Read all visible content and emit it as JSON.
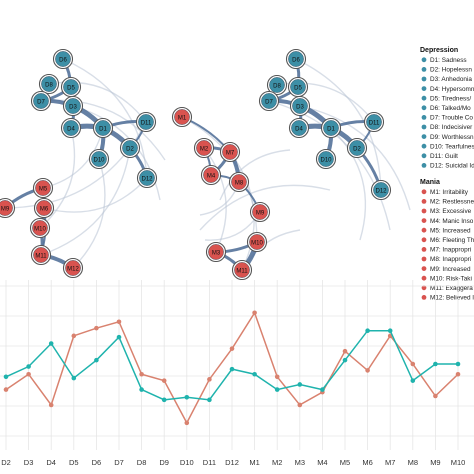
{
  "colors": {
    "depression": "#3d8fa6",
    "mania": "#d9534f",
    "edge": "#4a6a94",
    "edge_faint": "#b8c3d3",
    "line_red": "#d9826f",
    "line_teal": "#1fb3ad",
    "grid": "#e6e6e6"
  },
  "legend": {
    "depression_title": "Depression",
    "depression_items": [
      "D1: Sadness",
      "D2: Hopelessn",
      "D3: Anhedonia",
      "D4: Hypersomn",
      "D5: Tiredness/",
      "D6: Talked/Mo",
      "D7: Trouble Co",
      "D8: Indecisiver",
      "D9: Worthlessn",
      "D10: Tearfulnes",
      "D11: Guilt",
      "D12: Suicidal Id"
    ],
    "mania_title": "Mania",
    "mania_items": [
      "M1: Irritability",
      "M2: Restlessne",
      "M3: Excessive",
      "M4: Manic Inso",
      "M5: Increased",
      "M6: Fleeting Th",
      "M7: Inappropri",
      "M8: Inappropri",
      "M9: Increased",
      "M10: Risk-Taki",
      "M11: Exaggera",
      "M12: Believed I"
    ]
  },
  "networks": [
    {
      "nodes": [
        {
          "label": "D6",
          "group": "d"
        },
        {
          "label": "D8",
          "group": "d"
        },
        {
          "label": "D5",
          "group": "d"
        },
        {
          "label": "D7",
          "group": "d"
        },
        {
          "label": "D3",
          "group": "d"
        },
        {
          "label": "D4",
          "group": "d"
        },
        {
          "label": "D1",
          "group": "d"
        },
        {
          "label": "D11",
          "group": "d"
        },
        {
          "label": "D2",
          "group": "d"
        },
        {
          "label": "D10",
          "group": "d"
        },
        {
          "label": "D12",
          "group": "d"
        },
        {
          "label": "M9",
          "group": "m"
        },
        {
          "label": "M5",
          "group": "m"
        },
        {
          "label": "M6",
          "group": "m"
        },
        {
          "label": "M10",
          "group": "m"
        },
        {
          "label": "M11",
          "group": "m"
        },
        {
          "label": "M12",
          "group": "m"
        }
      ]
    },
    {
      "nodes": [
        {
          "label": "M1",
          "group": "m"
        },
        {
          "label": "M2",
          "group": "m"
        },
        {
          "label": "M7",
          "group": "m"
        },
        {
          "label": "M4",
          "group": "m"
        },
        {
          "label": "M8",
          "group": "m"
        },
        {
          "label": "M9",
          "group": "m"
        },
        {
          "label": "M10",
          "group": "m"
        },
        {
          "label": "M3",
          "group": "m"
        },
        {
          "label": "M11",
          "group": "m"
        }
      ]
    },
    {
      "nodes": [
        {
          "label": "D6",
          "group": "d"
        },
        {
          "label": "D8",
          "group": "d"
        },
        {
          "label": "D5",
          "group": "d"
        },
        {
          "label": "D7",
          "group": "d"
        },
        {
          "label": "D3",
          "group": "d"
        },
        {
          "label": "D4",
          "group": "d"
        },
        {
          "label": "D1",
          "group": "d"
        },
        {
          "label": "D11",
          "group": "d"
        },
        {
          "label": "D2",
          "group": "d"
        },
        {
          "label": "D10",
          "group": "d"
        },
        {
          "label": "D12",
          "group": "d"
        }
      ]
    }
  ],
  "chart_data": {
    "type": "line",
    "categories": [
      "D2",
      "D3",
      "D4",
      "D5",
      "D6",
      "D7",
      "D8",
      "D9",
      "D10",
      "D11",
      "D12",
      "M1",
      "M2",
      "M3",
      "M4",
      "M5",
      "M6",
      "M7",
      "M8",
      "M9",
      "M10"
    ],
    "series": [
      {
        "values": [
          0.3,
          0.42,
          0.18,
          0.72,
          0.78,
          0.83,
          0.42,
          0.37,
          0.04,
          0.38,
          0.62,
          0.9,
          0.4,
          0.18,
          0.28,
          0.6,
          0.45,
          0.72,
          0.5,
          0.25,
          0.42
        ]
      },
      {
        "values": [
          0.4,
          0.48,
          0.66,
          0.39,
          0.53,
          0.71,
          0.3,
          0.22,
          0.24,
          0.22,
          0.46,
          0.42,
          0.3,
          0.34,
          0.3,
          0.53,
          0.76,
          0.76,
          0.37,
          0.5,
          0.5
        ]
      }
    ],
    "ylim": [
      0,
      1
    ],
    "grid": true
  }
}
